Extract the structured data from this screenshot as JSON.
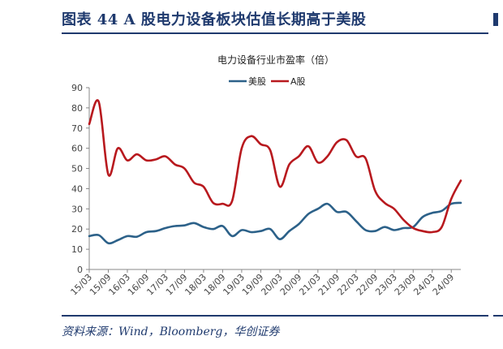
{
  "header": {
    "figure_title": "图表 44 A 股电力设备板块估值长期高于美股",
    "source": "资料来源：Wind，Bloomberg，华创证券"
  },
  "colors": {
    "us_series": "#2c6189",
    "a_series": "#b8191e",
    "brand": "#1f3a6e"
  },
  "chart_data": {
    "type": "line",
    "title": "电力设备行业市盈率（倍）",
    "xlabel": "",
    "ylabel": "",
    "ylim": [
      0,
      90
    ],
    "yticks": [
      0,
      10,
      20,
      30,
      40,
      50,
      60,
      70,
      80,
      90
    ],
    "grid": false,
    "legend_position": "top-center",
    "x_tick_labels": [
      "15/03",
      "15/09",
      "16/03",
      "16/09",
      "17/03",
      "17/09",
      "18/03",
      "18/09",
      "19/03",
      "19/09",
      "20/03",
      "20/09",
      "21/03",
      "21/09",
      "22/03",
      "22/09",
      "23/03",
      "23/09",
      "24/03",
      "24/09"
    ],
    "x_tick_positions": [
      0,
      6,
      12,
      18,
      24,
      30,
      36,
      42,
      48,
      54,
      60,
      66,
      72,
      78,
      84,
      90,
      96,
      102,
      108,
      114
    ],
    "x_range": [
      0,
      117
    ],
    "series": [
      {
        "name": "美股",
        "color": "#2c6189",
        "points": [
          [
            0,
            16.5
          ],
          [
            3,
            17
          ],
          [
            6,
            13
          ],
          [
            9,
            14.5
          ],
          [
            12,
            16.5
          ],
          [
            15,
            16.2
          ],
          [
            18,
            18.5
          ],
          [
            21,
            19
          ],
          [
            24,
            20.5
          ],
          [
            27,
            21.5
          ],
          [
            30,
            21.8
          ],
          [
            33,
            23
          ],
          [
            36,
            21
          ],
          [
            39,
            20
          ],
          [
            42,
            21.5
          ],
          [
            45,
            16.5
          ],
          [
            48,
            19.5
          ],
          [
            51,
            18.5
          ],
          [
            54,
            19
          ],
          [
            57,
            20
          ],
          [
            60,
            15
          ],
          [
            63,
            19
          ],
          [
            66,
            22.5
          ],
          [
            69,
            27.5
          ],
          [
            72,
            30
          ],
          [
            75,
            32.5
          ],
          [
            78,
            28.5
          ],
          [
            81,
            28.5
          ],
          [
            84,
            24
          ],
          [
            87,
            19.5
          ],
          [
            90,
            19
          ],
          [
            93,
            21
          ],
          [
            96,
            19.5
          ],
          [
            99,
            20.5
          ],
          [
            102,
            21
          ],
          [
            105,
            26
          ],
          [
            108,
            28
          ],
          [
            111,
            29
          ],
          [
            114,
            32.5
          ],
          [
            117,
            33
          ]
        ]
      },
      {
        "name": "A股",
        "color": "#b8191e",
        "points": [
          [
            0,
            72
          ],
          [
            3,
            83
          ],
          [
            6,
            47
          ],
          [
            9,
            60
          ],
          [
            12,
            54
          ],
          [
            15,
            57
          ],
          [
            18,
            54
          ],
          [
            21,
            54.5
          ],
          [
            24,
            56
          ],
          [
            27,
            52
          ],
          [
            30,
            50
          ],
          [
            33,
            43
          ],
          [
            36,
            41
          ],
          [
            39,
            33
          ],
          [
            42,
            32.5
          ],
          [
            45,
            34
          ],
          [
            48,
            60
          ],
          [
            51,
            66
          ],
          [
            54,
            62
          ],
          [
            57,
            59
          ],
          [
            60,
            41
          ],
          [
            63,
            52
          ],
          [
            66,
            56
          ],
          [
            69,
            61
          ],
          [
            72,
            53
          ],
          [
            75,
            56
          ],
          [
            78,
            63
          ],
          [
            81,
            64
          ],
          [
            84,
            56
          ],
          [
            87,
            55
          ],
          [
            90,
            39
          ],
          [
            93,
            33
          ],
          [
            96,
            30
          ],
          [
            99,
            24.5
          ],
          [
            102,
            20.5
          ],
          [
            105,
            19
          ],
          [
            108,
            18.5
          ],
          [
            111,
            21
          ],
          [
            114,
            35
          ],
          [
            117,
            44
          ]
        ]
      }
    ]
  }
}
